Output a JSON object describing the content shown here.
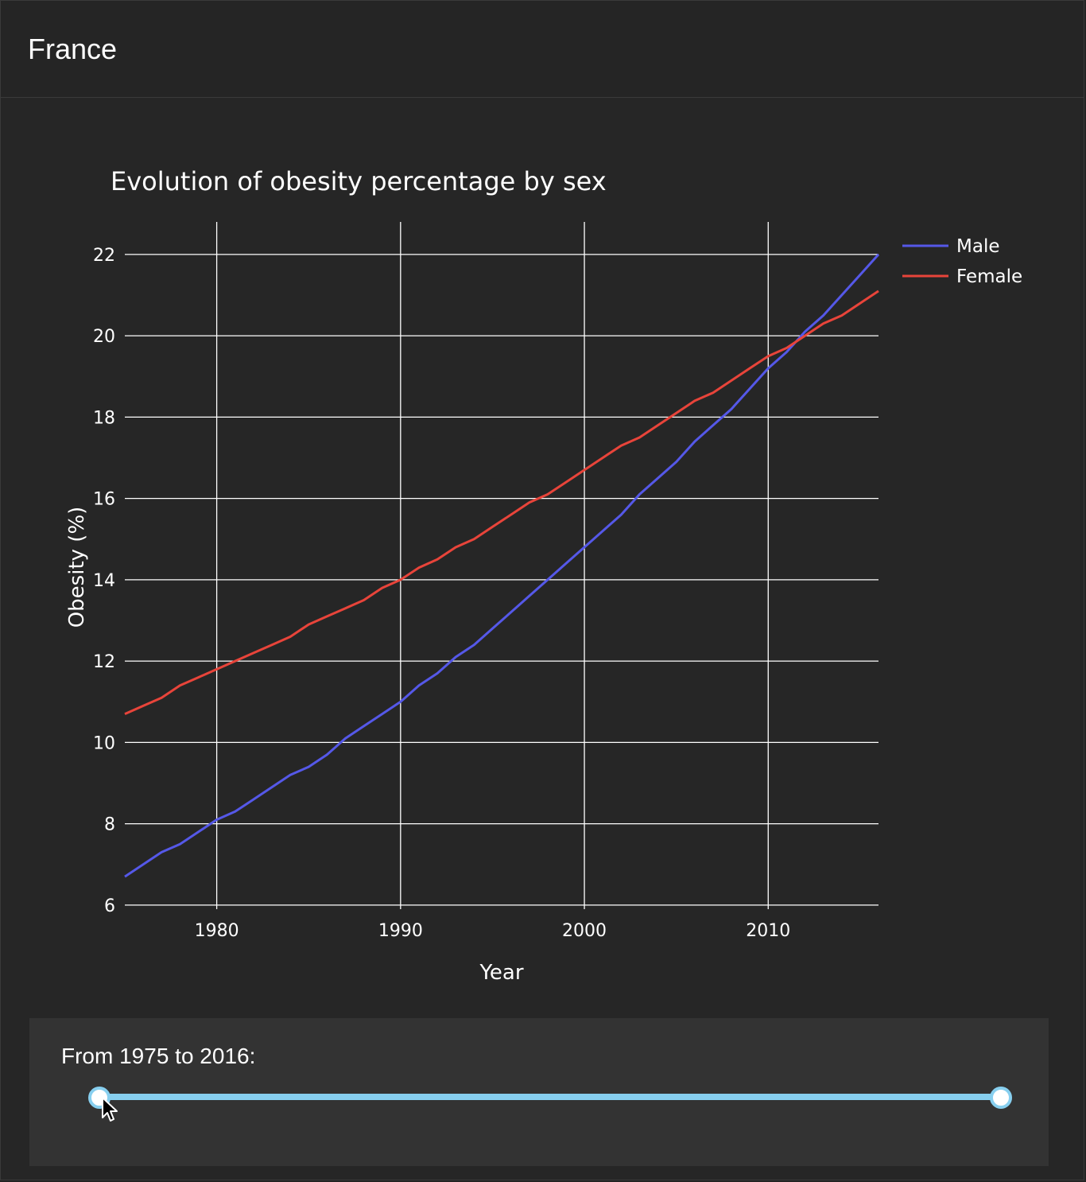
{
  "header": {
    "title": "France"
  },
  "chart_data": {
    "type": "line",
    "title": "Evolution of obesity percentage by sex",
    "xlabel": "Year",
    "ylabel": "Obesity (%)",
    "xlim": [
      1975,
      2016
    ],
    "ylim": [
      5.9,
      22.8
    ],
    "xticks": [
      1980,
      1990,
      2000,
      2010
    ],
    "yticks": [
      6,
      8,
      10,
      12,
      14,
      16,
      18,
      20,
      22
    ],
    "grid": true,
    "legend_position": "top-right",
    "x": [
      1975,
      1976,
      1977,
      1978,
      1979,
      1980,
      1981,
      1982,
      1983,
      1984,
      1985,
      1986,
      1987,
      1988,
      1989,
      1990,
      1991,
      1992,
      1993,
      1994,
      1995,
      1996,
      1997,
      1998,
      1999,
      2000,
      2001,
      2002,
      2003,
      2004,
      2005,
      2006,
      2007,
      2008,
      2009,
      2010,
      2011,
      2012,
      2013,
      2014,
      2015,
      2016
    ],
    "series": [
      {
        "name": "Male",
        "color": "#5558e8",
        "values": [
          6.7,
          7.0,
          7.3,
          7.5,
          7.8,
          8.1,
          8.3,
          8.6,
          8.9,
          9.2,
          9.4,
          9.7,
          10.1,
          10.4,
          10.7,
          11.0,
          11.4,
          11.7,
          12.1,
          12.4,
          12.8,
          13.2,
          13.6,
          14.0,
          14.4,
          14.8,
          15.2,
          15.6,
          16.1,
          16.5,
          16.9,
          17.4,
          17.8,
          18.2,
          18.7,
          19.2,
          19.6,
          20.1,
          20.5,
          21.0,
          21.5,
          22.0
        ]
      },
      {
        "name": "Female",
        "color": "#e8443a",
        "values": [
          10.7,
          10.9,
          11.1,
          11.4,
          11.6,
          11.8,
          12.0,
          12.2,
          12.4,
          12.6,
          12.9,
          13.1,
          13.3,
          13.5,
          13.8,
          14.0,
          14.3,
          14.5,
          14.8,
          15.0,
          15.3,
          15.6,
          15.9,
          16.1,
          16.4,
          16.7,
          17.0,
          17.3,
          17.5,
          17.8,
          18.1,
          18.4,
          18.6,
          18.9,
          19.2,
          19.5,
          19.7,
          20.0,
          20.3,
          20.5,
          20.8,
          21.1
        ]
      }
    ]
  },
  "slider": {
    "label": "From 1975 to 2016:",
    "min": 1975,
    "max": 2016,
    "start": 1975,
    "end": 2016,
    "track_color": "#87cfef"
  },
  "colors": {
    "background": "#262626",
    "grid": "#ffffff",
    "text": "#ffffff"
  }
}
